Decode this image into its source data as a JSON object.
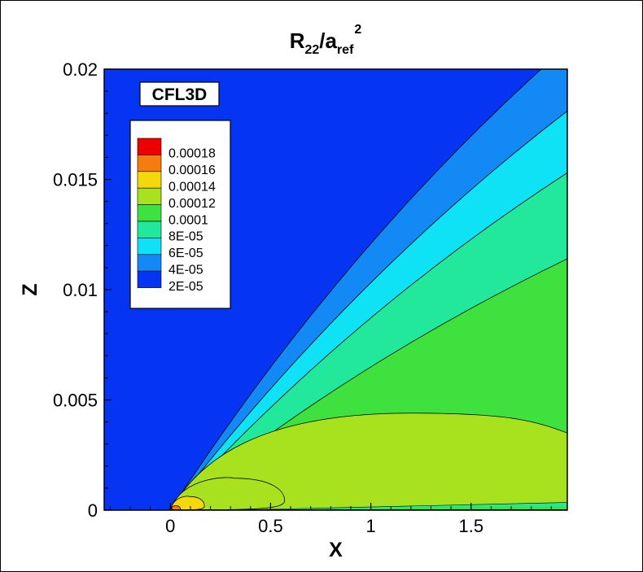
{
  "chart_data": {
    "type": "contour",
    "title": {
      "main": "R",
      "sub1": "22",
      "mid": "/a",
      "sub2": "ref",
      "sup": "2"
    },
    "xlabel": "X",
    "ylabel": "Z",
    "xlim": [
      -0.33,
      1.98
    ],
    "ylim": [
      0,
      0.02
    ],
    "xticks": [
      {
        "value": 0,
        "label": "0"
      },
      {
        "value": 0.5,
        "label": "0.5"
      },
      {
        "value": 1,
        "label": "1"
      },
      {
        "value": 1.5,
        "label": "1.5"
      }
    ],
    "yticks": [
      {
        "value": 0,
        "label": "0"
      },
      {
        "value": 0.005,
        "label": "0.005"
      },
      {
        "value": 0.01,
        "label": "0.01"
      },
      {
        "value": 0.015,
        "label": "0.015"
      },
      {
        "value": 0.02,
        "label": "0.02"
      }
    ],
    "annotation": "CFL3D",
    "legend": {
      "placement": "upper-left",
      "entries": [
        {
          "label": "0.00018",
          "color": "#ee0000"
        },
        {
          "label": "0.00016",
          "color": "#f57c0e"
        },
        {
          "label": "0.00014",
          "color": "#f5d80c"
        },
        {
          "label": "0.00012",
          "color": "#a8e21e"
        },
        {
          "label": "0.0001",
          "color": "#3ee13e"
        },
        {
          "label": "8E-05",
          "color": "#22e89c"
        },
        {
          "label": "6E-05",
          "color": "#10e2f5"
        },
        {
          "label": "4E-05",
          "color": "#1289f5"
        },
        {
          "label": "2E-05",
          "color": "#0535f2"
        }
      ]
    },
    "background_level_color": "#0535f2",
    "contour_levels": [
      2e-05,
      4e-05,
      6e-05,
      8e-05,
      0.0001,
      0.00012,
      0.00014,
      0.00016,
      0.00018
    ],
    "fan_boundaries": [
      {
        "level": 2e-05,
        "color_above": "#0535f2",
        "color_below": "#1289f5",
        "x_end": 1.85,
        "z_end": 0.02
      },
      {
        "level": 4e-05,
        "color_above": "#1289f5",
        "color_below": "#10e2f5",
        "x_end": 1.98,
        "z_end": 0.0181
      },
      {
        "level": 6e-05,
        "color_above": "#10e2f5",
        "color_below": "#22e89c",
        "x_end": 1.98,
        "z_end": 0.0153
      },
      {
        "level": 8e-05,
        "color_above": "#22e89c",
        "color_below": "#3ee13e",
        "x_end": 1.98,
        "z_end": 0.0114
      }
    ],
    "closed_regions": [
      {
        "level": 0.0001,
        "color": "#a8e21e",
        "x_peak": 1.2,
        "z_peak": 0.0044,
        "x_end": 1.98,
        "z_end": 0.0035
      },
      {
        "level": 0.00012,
        "color": "#a8e21e",
        "x_max": 0.57,
        "z_max": 0.00145
      },
      {
        "level": 0.00014,
        "color": "#f5d80c",
        "x_max": 0.17,
        "z_max": 0.00062
      },
      {
        "level": 0.00016,
        "color": "#f57c0e",
        "x_max": 0.05,
        "z_max": 0.0002
      },
      {
        "level": 0.00018,
        "color": "#ee0000",
        "x_max": 0.01,
        "z_max": 8e-05
      }
    ]
  }
}
